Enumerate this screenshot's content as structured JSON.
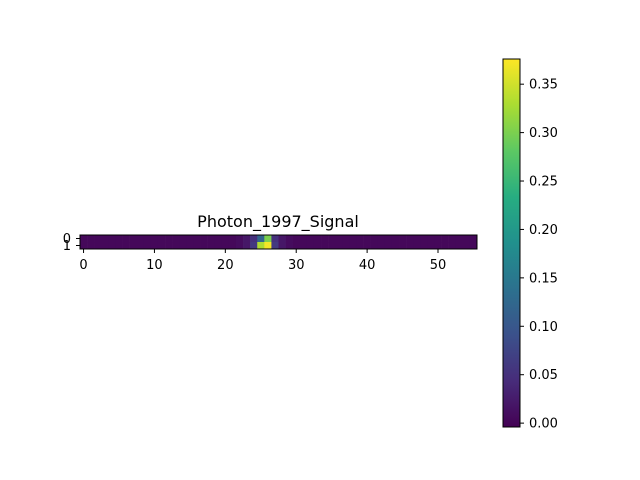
{
  "chart_data": [
    {
      "type": "heatmap",
      "title": "Photon_1997_Signal",
      "xlabel": "",
      "ylabel": "",
      "rows": 2,
      "cols": 56,
      "x_ticks": [
        0,
        10,
        20,
        30,
        40,
        50
      ],
      "y_ticks": [
        0,
        1
      ],
      "grid": false,
      "colormap": "viridis",
      "values": [
        [
          0.004,
          0.004,
          0.004,
          0.004,
          0.004,
          0.004,
          0.004,
          0.004,
          0.004,
          0.004,
          0.004,
          0.004,
          0.004,
          0.004,
          0.004,
          0.004,
          0.004,
          0.004,
          0.004,
          0.004,
          0.004,
          0.004,
          0.008,
          0.02,
          0.05,
          0.12,
          0.3,
          0.05,
          0.02,
          0.008,
          0.004,
          0.004,
          0.004,
          0.004,
          0.004,
          0.004,
          0.004,
          0.004,
          0.004,
          0.004,
          0.004,
          0.004,
          0.004,
          0.004,
          0.004,
          0.004,
          0.004,
          0.004,
          0.004,
          0.004,
          0.004,
          0.004,
          0.004,
          0.004,
          0.004,
          0.004
        ],
        [
          0.004,
          0.004,
          0.004,
          0.004,
          0.004,
          0.004,
          0.004,
          0.004,
          0.004,
          0.004,
          0.004,
          0.004,
          0.004,
          0.004,
          0.004,
          0.004,
          0.004,
          0.004,
          0.004,
          0.004,
          0.004,
          0.004,
          0.008,
          0.02,
          0.06,
          0.33,
          0.37,
          0.06,
          0.02,
          0.008,
          0.004,
          0.004,
          0.004,
          0.004,
          0.004,
          0.004,
          0.004,
          0.004,
          0.004,
          0.004,
          0.004,
          0.004,
          0.004,
          0.004,
          0.004,
          0.004,
          0.004,
          0.004,
          0.004,
          0.004,
          0.004,
          0.004,
          0.004,
          0.004,
          0.004,
          0.004
        ]
      ]
    },
    {
      "type": "colorbar",
      "colormap": "viridis",
      "range": [
        -0.004,
        0.376
      ],
      "ticks": [
        0.0,
        0.05,
        0.1,
        0.15,
        0.2,
        0.25,
        0.3,
        0.35
      ],
      "tick_labels": [
        "0.00",
        "0.05",
        "0.10",
        "0.15",
        "0.20",
        "0.25",
        "0.30",
        "0.35"
      ]
    }
  ]
}
